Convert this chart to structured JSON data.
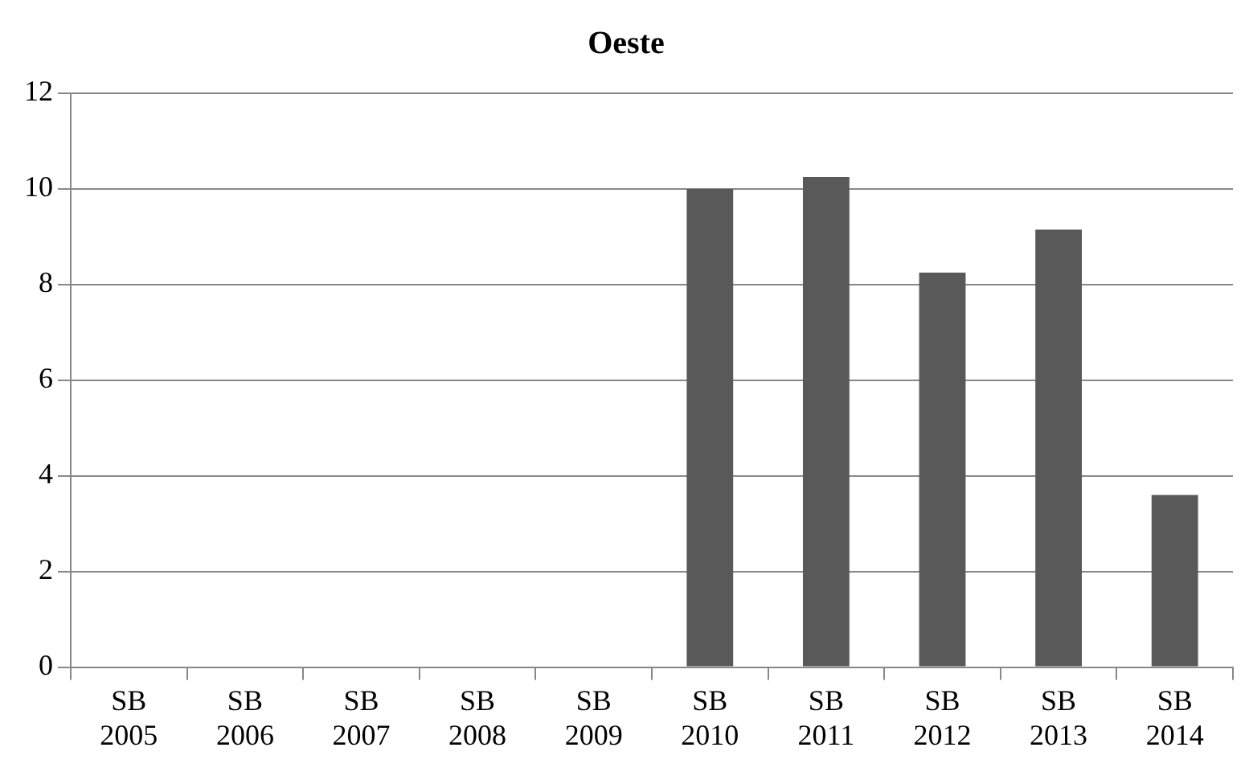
{
  "chart_data": {
    "type": "bar",
    "title": "Oeste",
    "categories": [
      "SB 2005",
      "SB 2006",
      "SB 2007",
      "SB 2008",
      "SB 2009",
      "SB 2010",
      "SB 2011",
      "SB 2012",
      "SB 2013",
      "SB 2014"
    ],
    "values": [
      0,
      0,
      0,
      0,
      0,
      10,
      10.25,
      8.25,
      9.15,
      3.6
    ],
    "color": "#595959",
    "ylim": [
      0,
      12
    ],
    "yticks": [
      0,
      2,
      4,
      6,
      8,
      10,
      12
    ],
    "grid": "y"
  }
}
